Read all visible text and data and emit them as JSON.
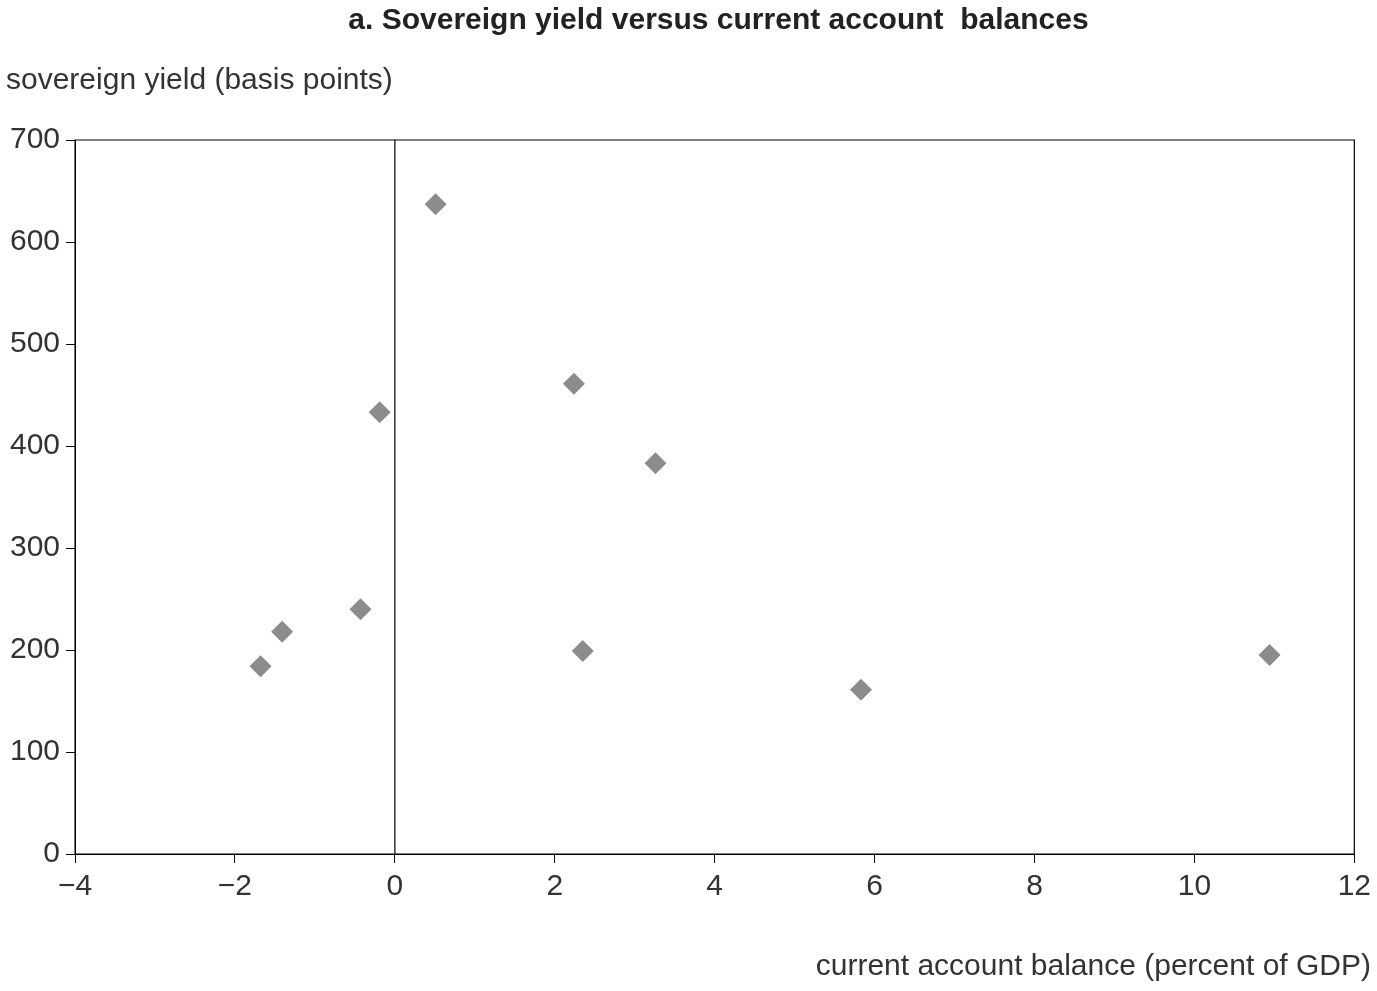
{
  "chart_data": {
    "type": "scatter",
    "title": "a. Sovereign yield versus current account  balances",
    "ylabel": "sovereign yield (basis points)",
    "xlabel": "current account balance (percent of GDP)",
    "series": [
      {
        "color": "#8c8c8c",
        "x": [
          0.51,
          2.24,
          -0.19,
          3.26,
          -0.43,
          -1.41,
          -1.68,
          2.35,
          5.83,
          10.94
        ],
        "values": [
          637,
          461,
          433,
          383,
          240,
          218,
          184,
          199,
          161,
          195
        ]
      }
    ],
    "xlim": [
      -4,
      12
    ],
    "xticks": [
      {
        "value": -4,
        "label": "−4"
      },
      {
        "value": -2,
        "label": "−2"
      },
      0,
      2,
      4,
      6,
      8,
      10,
      12
    ],
    "ylim": [
      0,
      700
    ],
    "yticks": [
      0,
      100,
      200,
      300,
      400,
      500,
      600,
      700
    ],
    "ref_lines": [
      {
        "axis": "x",
        "value": 0,
        "color": "#000000"
      }
    ],
    "marker": "diamond",
    "grid": false,
    "legend": false
  }
}
